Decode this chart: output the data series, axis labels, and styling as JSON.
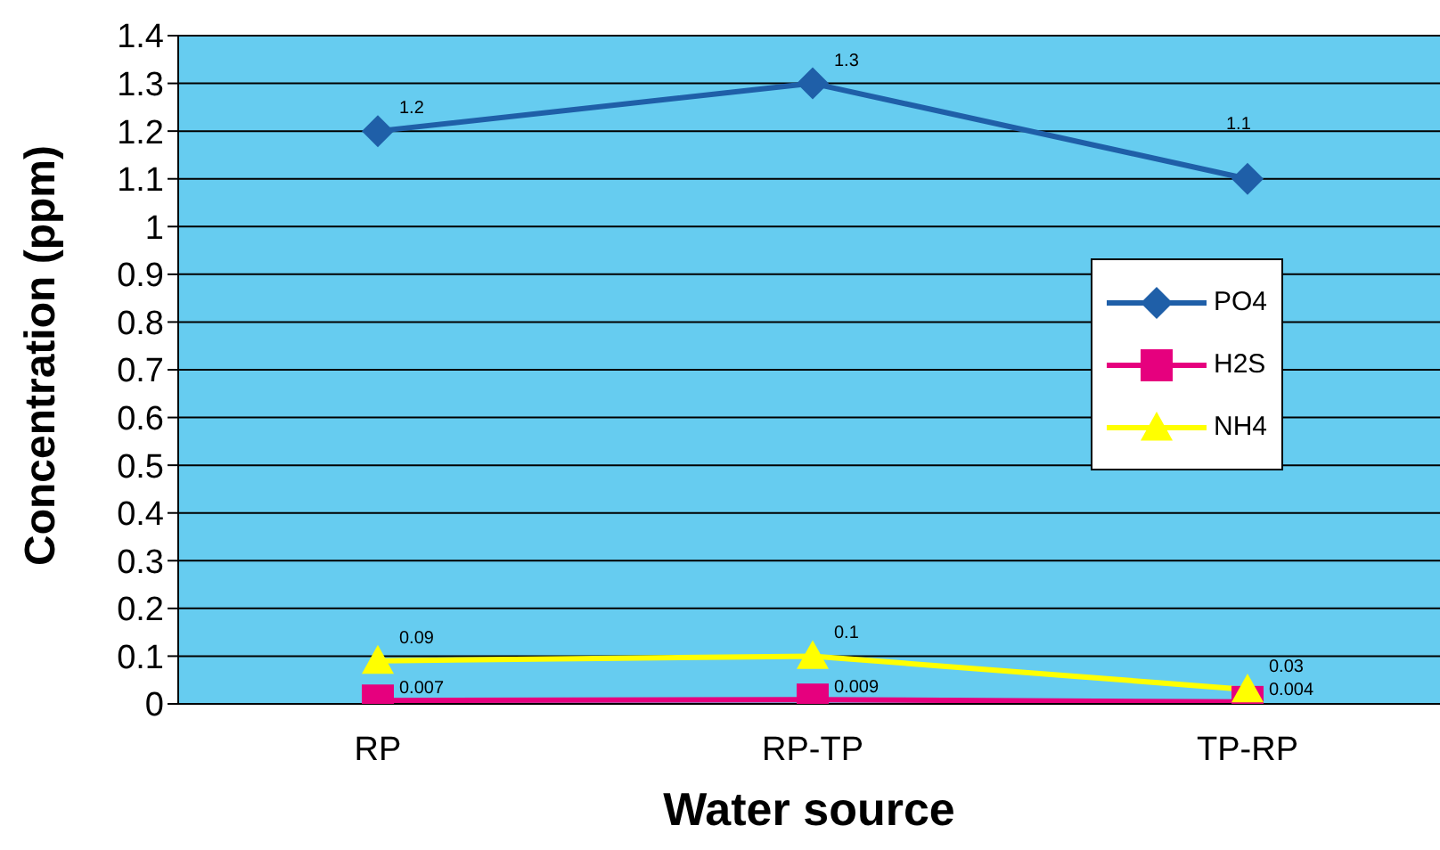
{
  "chart_data": {
    "type": "line",
    "xlabel": "Water source",
    "ylabel": "Concentration (ppm)",
    "categories": [
      "RP",
      "RP-TP",
      "TP-RP"
    ],
    "series": [
      {
        "name": "PO4",
        "color": "#1f5fa8",
        "marker": "diamond",
        "values": [
          1.2,
          1.3,
          1.1
        ]
      },
      {
        "name": "H2S",
        "color": "#e6007e",
        "marker": "square",
        "values": [
          0.007,
          0.009,
          0.004
        ]
      },
      {
        "name": "NH4",
        "color": "#ffff00",
        "marker": "triangle",
        "values": [
          0.09,
          0.1,
          0.03
        ]
      }
    ],
    "ylim": [
      0,
      1.4
    ],
    "yticks": [
      0,
      0.1,
      0.2,
      0.3,
      0.4,
      0.5,
      0.6,
      0.7,
      0.8,
      0.9,
      1,
      1.1,
      1.2,
      1.3,
      1.4
    ],
    "grid": "y",
    "legend": "right",
    "data_labels": true
  }
}
